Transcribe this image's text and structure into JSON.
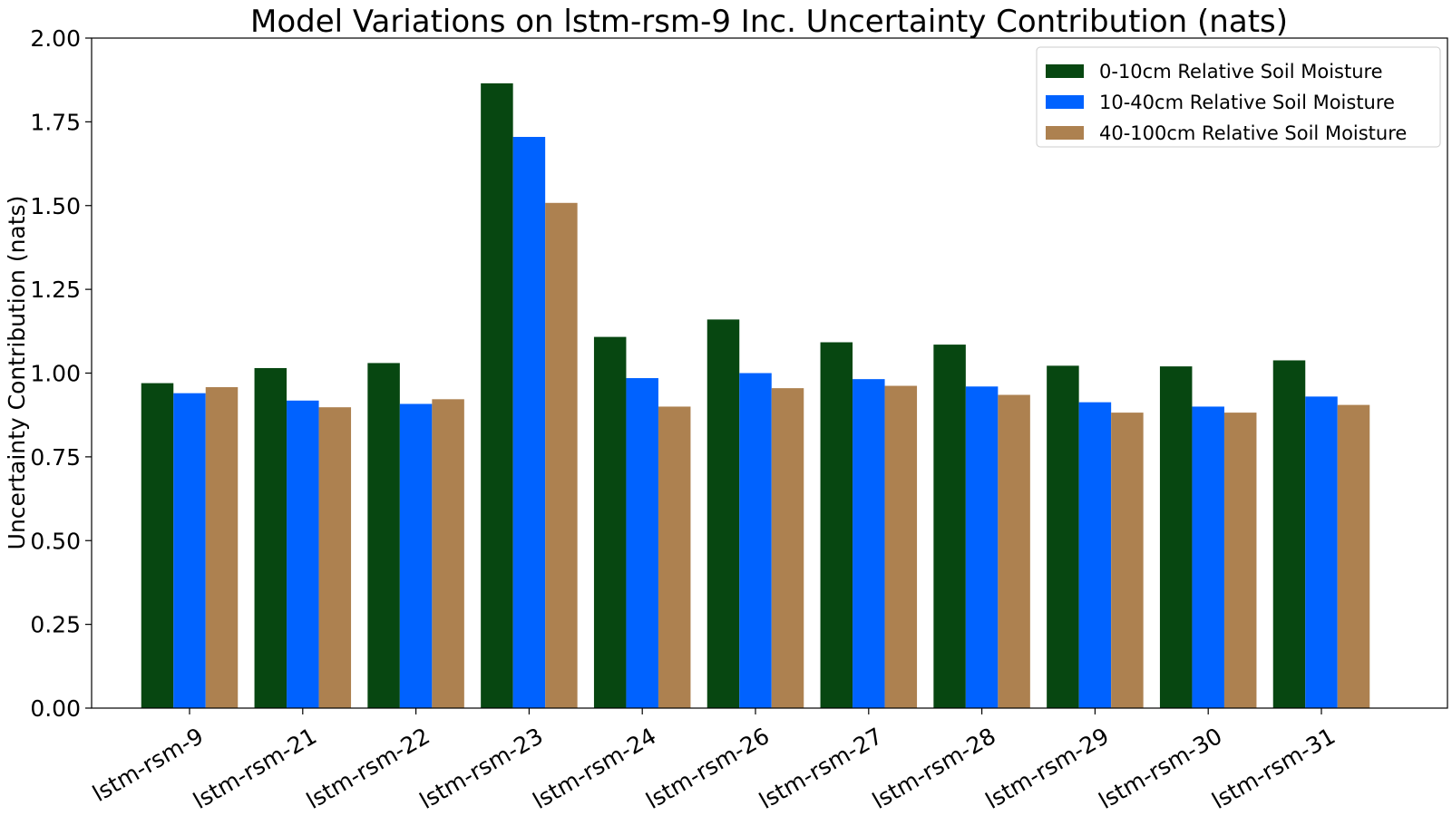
{
  "chart_data": {
    "type": "bar",
    "title": "Model Variations on lstm-rsm-9 Inc. Uncertainty Contribution (nats)",
    "xlabel": "",
    "ylabel": "Uncertainty Contribution (nats)",
    "ylim": [
      0,
      2.0
    ],
    "yticks": [
      "0.00",
      "0.25",
      "0.50",
      "0.75",
      "1.00",
      "1.25",
      "1.50",
      "1.75",
      "2.00"
    ],
    "grid": false,
    "legend_position": "top-right",
    "categories": [
      "lstm-rsm-9",
      "lstm-rsm-21",
      "lstm-rsm-22",
      "lstm-rsm-23",
      "lstm-rsm-24",
      "lstm-rsm-26",
      "lstm-rsm-27",
      "lstm-rsm-28",
      "lstm-rsm-29",
      "lstm-rsm-30",
      "lstm-rsm-31"
    ],
    "series": [
      {
        "name": "0-10cm Relative Soil Moisture",
        "color": "#074711",
        "values": [
          0.97,
          1.015,
          1.03,
          1.865,
          1.108,
          1.16,
          1.092,
          1.085,
          1.022,
          1.02,
          1.038
        ]
      },
      {
        "name": "10-40cm Relative Soil Moisture",
        "color": "#0062ff",
        "values": [
          0.94,
          0.918,
          0.908,
          1.705,
          0.985,
          1.0,
          0.982,
          0.96,
          0.913,
          0.9,
          0.93
        ]
      },
      {
        "name": "40-100cm Relative Soil Moisture",
        "color": "#ad8150",
        "values": [
          0.958,
          0.898,
          0.922,
          1.508,
          0.9,
          0.955,
          0.962,
          0.935,
          0.882,
          0.882,
          0.905
        ]
      }
    ]
  }
}
